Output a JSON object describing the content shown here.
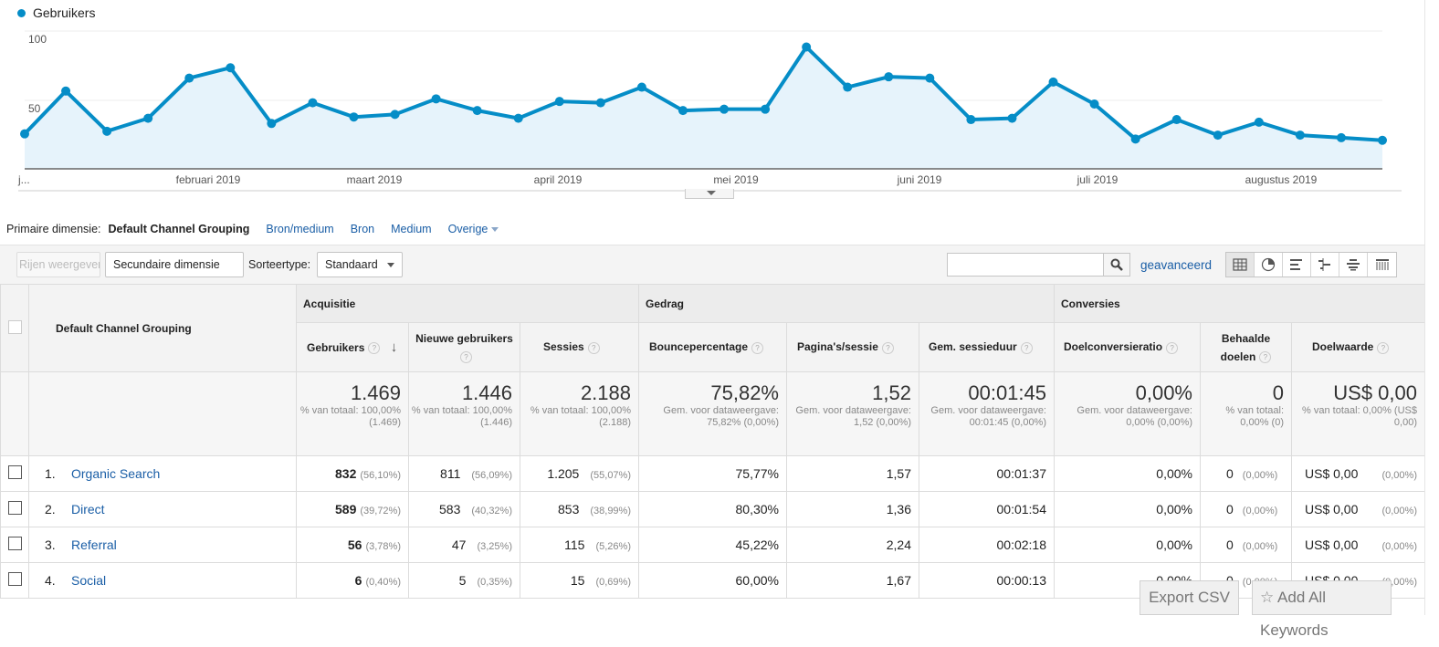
{
  "chart_data": {
    "type": "area",
    "legend": "Gebruikers",
    "color": "#058dc7",
    "fill": "#e6f3fb",
    "y_ticks": [
      "100",
      "50"
    ],
    "ylim": [
      0,
      100
    ],
    "x_labels": [
      "j...",
      "februari 2019",
      "maart 2019",
      "april 2019",
      "mei 2019",
      "juni 2019",
      "juli 2019",
      "augustus 2019"
    ],
    "values": [
      27,
      60,
      29,
      39,
      70,
      78,
      35,
      51,
      40,
      42,
      54,
      45,
      39,
      52,
      51,
      63,
      45,
      46,
      46,
      94,
      63,
      71,
      70,
      38,
      39,
      67,
      50,
      23,
      38,
      26,
      36,
      26,
      24,
      22
    ]
  },
  "dimension": {
    "label": "Primaire dimensie:",
    "active": "Default Channel Grouping",
    "links": [
      "Bron/medium",
      "Bron",
      "Medium"
    ],
    "other": "Overige"
  },
  "toolbar": {
    "rows_button": "Rijen weergeven",
    "secondary": "Secundaire dimensie",
    "sort_label": "Sorteertype:",
    "sort_value": "Standaard",
    "search_placeholder": "",
    "advanced": "geavanceerd"
  },
  "table": {
    "dim_header": "Default Channel Grouping",
    "groups": [
      "Acquisitie",
      "Gedrag",
      "Conversies"
    ],
    "columns": [
      "Gebruikers",
      "Nieuwe gebruikers",
      "Sessies",
      "Bouncepercentage",
      "Pagina's/sessie",
      "Gem. sessieduur",
      "Doelconversieratio",
      "Behaalde doelen",
      "Doelwaarde"
    ],
    "totals": [
      {
        "value": "1.469",
        "sub": "% van totaal: 100,00% (1.469)"
      },
      {
        "value": "1.446",
        "sub": "% van totaal: 100,00% (1.446)"
      },
      {
        "value": "2.188",
        "sub": "% van totaal: 100,00% (2.188)"
      },
      {
        "value": "75,82%",
        "sub": "Gem. voor dataweergave: 75,82% (0,00%)"
      },
      {
        "value": "1,52",
        "sub": "Gem. voor dataweergave: 1,52 (0,00%)"
      },
      {
        "value": "00:01:45",
        "sub": "Gem. voor dataweergave: 00:01:45 (0,00%)"
      },
      {
        "value": "0,00%",
        "sub": "Gem. voor dataweergave: 0,00% (0,00%)"
      },
      {
        "value": "0",
        "sub": "% van totaal: 0,00% (0)"
      },
      {
        "value": "US$ 0,00",
        "sub": "% van totaal: 0,00% (US$ 0,00)"
      }
    ],
    "rows": [
      {
        "idx": "1.",
        "name": "Organic Search",
        "users": "832",
        "users_pct": "(56,10%)",
        "new": "811",
        "new_pct": "(56,09%)",
        "sessions": "1.205",
        "sessions_pct": "(55,07%)",
        "bounce": "75,77%",
        "pps": "1,57",
        "dur": "00:01:37",
        "conv": "0,00%",
        "goals": "0",
        "goals_pct": "(0,00%)",
        "value": "US$ 0,00",
        "value_pct": "(0,00%)"
      },
      {
        "idx": "2.",
        "name": "Direct",
        "users": "589",
        "users_pct": "(39,72%)",
        "new": "583",
        "new_pct": "(40,32%)",
        "sessions": "853",
        "sessions_pct": "(38,99%)",
        "bounce": "80,30%",
        "pps": "1,36",
        "dur": "00:01:54",
        "conv": "0,00%",
        "goals": "0",
        "goals_pct": "(0,00%)",
        "value": "US$ 0,00",
        "value_pct": "(0,00%)"
      },
      {
        "idx": "3.",
        "name": "Referral",
        "users": "56",
        "users_pct": "(3,78%)",
        "new": "47",
        "new_pct": "(3,25%)",
        "sessions": "115",
        "sessions_pct": "(5,26%)",
        "bounce": "45,22%",
        "pps": "2,24",
        "dur": "00:02:18",
        "conv": "0,00%",
        "goals": "0",
        "goals_pct": "(0,00%)",
        "value": "US$ 0,00",
        "value_pct": "(0,00%)"
      },
      {
        "idx": "4.",
        "name": "Social",
        "users": "6",
        "users_pct": "(0,40%)",
        "new": "5",
        "new_pct": "(0,35%)",
        "sessions": "15",
        "sessions_pct": "(0,69%)",
        "bounce": "60,00%",
        "pps": "1,67",
        "dur": "00:00:13",
        "conv": "0,00%",
        "goals": "0",
        "goals_pct": "(0,00%)",
        "value": "US$ 0,00",
        "value_pct": "(0,00%)"
      }
    ]
  },
  "overlay": {
    "export": "Export CSV",
    "keywords": "Add All Keywords"
  }
}
